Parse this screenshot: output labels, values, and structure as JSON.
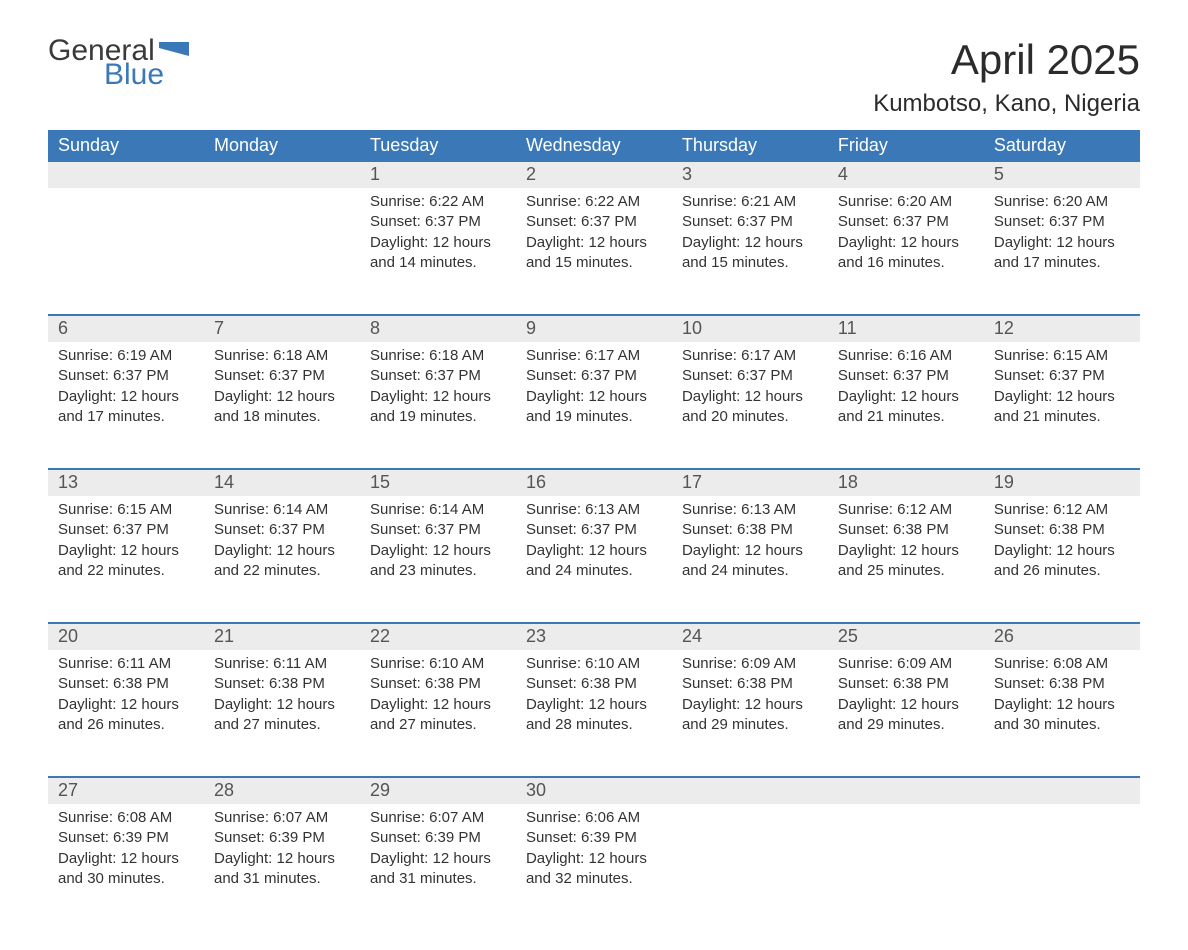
{
  "logo": {
    "general": "General",
    "blue": "Blue",
    "flag_color": "#3a78b7"
  },
  "title": "April 2025",
  "location": "Kumbotso, Kano, Nigeria",
  "columns": [
    "Sunday",
    "Monday",
    "Tuesday",
    "Wednesday",
    "Thursday",
    "Friday",
    "Saturday"
  ],
  "colors": {
    "header_bg": "#3a78b7",
    "header_text": "#ffffff",
    "daynum_bg": "#ececec",
    "text": "#333333",
    "border": "#3a78b7",
    "page_bg": "#ffffff"
  },
  "labels": {
    "sunrise_prefix": "Sunrise: ",
    "sunset_prefix": "Sunset: ",
    "daylight_prefix": "Daylight: ",
    "daylight_hours_unit": " hours",
    "daylight_and": "and ",
    "daylight_minutes_unit": " minutes."
  },
  "weeks": [
    [
      null,
      null,
      {
        "d": "1",
        "sunrise": "6:22 AM",
        "sunset": "6:37 PM",
        "dh": 12,
        "dm": 14
      },
      {
        "d": "2",
        "sunrise": "6:22 AM",
        "sunset": "6:37 PM",
        "dh": 12,
        "dm": 15
      },
      {
        "d": "3",
        "sunrise": "6:21 AM",
        "sunset": "6:37 PM",
        "dh": 12,
        "dm": 15
      },
      {
        "d": "4",
        "sunrise": "6:20 AM",
        "sunset": "6:37 PM",
        "dh": 12,
        "dm": 16
      },
      {
        "d": "5",
        "sunrise": "6:20 AM",
        "sunset": "6:37 PM",
        "dh": 12,
        "dm": 17
      }
    ],
    [
      {
        "d": "6",
        "sunrise": "6:19 AM",
        "sunset": "6:37 PM",
        "dh": 12,
        "dm": 17
      },
      {
        "d": "7",
        "sunrise": "6:18 AM",
        "sunset": "6:37 PM",
        "dh": 12,
        "dm": 18
      },
      {
        "d": "8",
        "sunrise": "6:18 AM",
        "sunset": "6:37 PM",
        "dh": 12,
        "dm": 19
      },
      {
        "d": "9",
        "sunrise": "6:17 AM",
        "sunset": "6:37 PM",
        "dh": 12,
        "dm": 19
      },
      {
        "d": "10",
        "sunrise": "6:17 AM",
        "sunset": "6:37 PM",
        "dh": 12,
        "dm": 20
      },
      {
        "d": "11",
        "sunrise": "6:16 AM",
        "sunset": "6:37 PM",
        "dh": 12,
        "dm": 21
      },
      {
        "d": "12",
        "sunrise": "6:15 AM",
        "sunset": "6:37 PM",
        "dh": 12,
        "dm": 21
      }
    ],
    [
      {
        "d": "13",
        "sunrise": "6:15 AM",
        "sunset": "6:37 PM",
        "dh": 12,
        "dm": 22
      },
      {
        "d": "14",
        "sunrise": "6:14 AM",
        "sunset": "6:37 PM",
        "dh": 12,
        "dm": 22
      },
      {
        "d": "15",
        "sunrise": "6:14 AM",
        "sunset": "6:37 PM",
        "dh": 12,
        "dm": 23
      },
      {
        "d": "16",
        "sunrise": "6:13 AM",
        "sunset": "6:37 PM",
        "dh": 12,
        "dm": 24
      },
      {
        "d": "17",
        "sunrise": "6:13 AM",
        "sunset": "6:38 PM",
        "dh": 12,
        "dm": 24
      },
      {
        "d": "18",
        "sunrise": "6:12 AM",
        "sunset": "6:38 PM",
        "dh": 12,
        "dm": 25
      },
      {
        "d": "19",
        "sunrise": "6:12 AM",
        "sunset": "6:38 PM",
        "dh": 12,
        "dm": 26
      }
    ],
    [
      {
        "d": "20",
        "sunrise": "6:11 AM",
        "sunset": "6:38 PM",
        "dh": 12,
        "dm": 26
      },
      {
        "d": "21",
        "sunrise": "6:11 AM",
        "sunset": "6:38 PM",
        "dh": 12,
        "dm": 27
      },
      {
        "d": "22",
        "sunrise": "6:10 AM",
        "sunset": "6:38 PM",
        "dh": 12,
        "dm": 27
      },
      {
        "d": "23",
        "sunrise": "6:10 AM",
        "sunset": "6:38 PM",
        "dh": 12,
        "dm": 28
      },
      {
        "d": "24",
        "sunrise": "6:09 AM",
        "sunset": "6:38 PM",
        "dh": 12,
        "dm": 29
      },
      {
        "d": "25",
        "sunrise": "6:09 AM",
        "sunset": "6:38 PM",
        "dh": 12,
        "dm": 29
      },
      {
        "d": "26",
        "sunrise": "6:08 AM",
        "sunset": "6:38 PM",
        "dh": 12,
        "dm": 30
      }
    ],
    [
      {
        "d": "27",
        "sunrise": "6:08 AM",
        "sunset": "6:39 PM",
        "dh": 12,
        "dm": 30
      },
      {
        "d": "28",
        "sunrise": "6:07 AM",
        "sunset": "6:39 PM",
        "dh": 12,
        "dm": 31
      },
      {
        "d": "29",
        "sunrise": "6:07 AM",
        "sunset": "6:39 PM",
        "dh": 12,
        "dm": 31
      },
      {
        "d": "30",
        "sunrise": "6:06 AM",
        "sunset": "6:39 PM",
        "dh": 12,
        "dm": 32
      },
      null,
      null,
      null
    ]
  ]
}
